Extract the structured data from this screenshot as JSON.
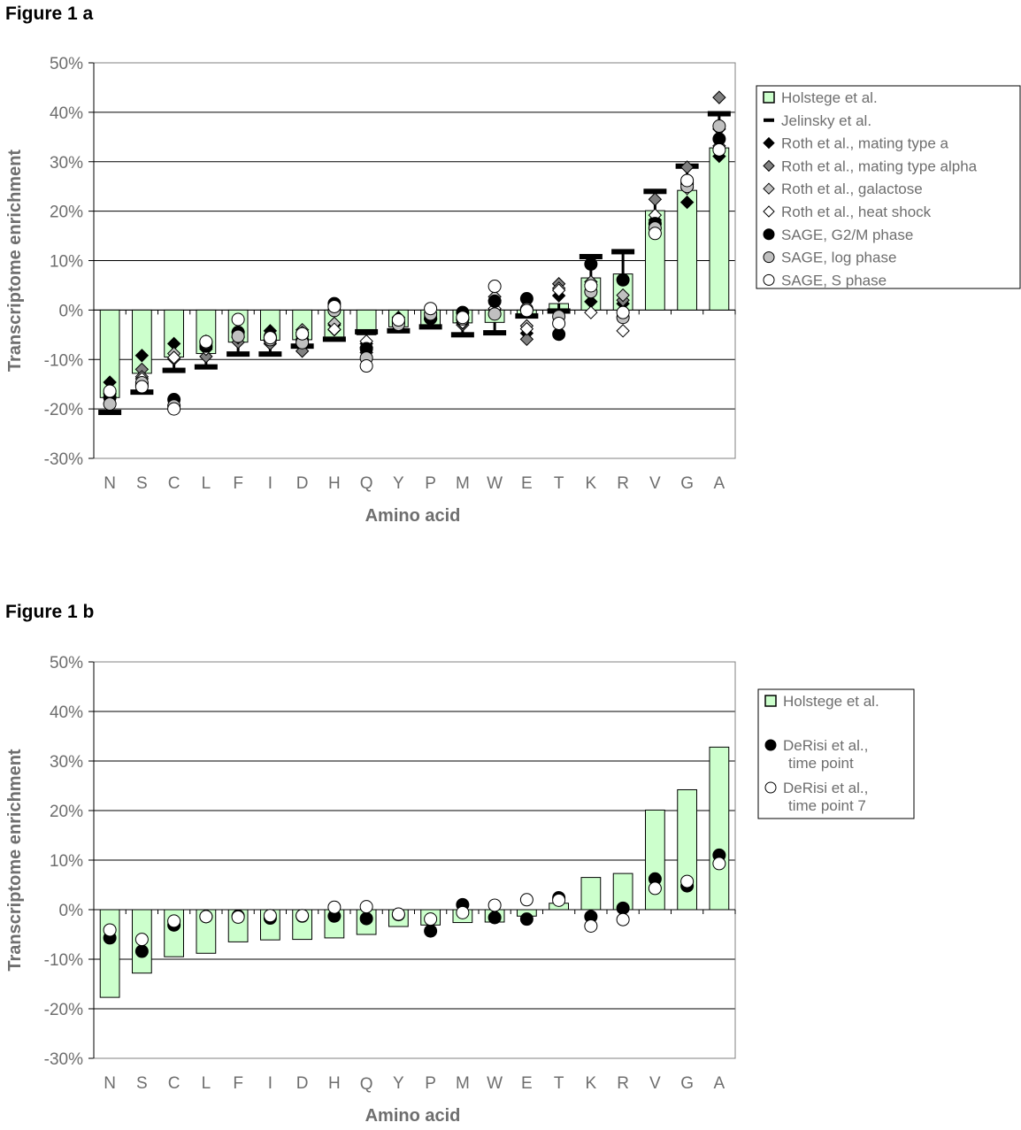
{
  "titles": {
    "a": "Figure 1 a",
    "b": "Figure 1 b"
  },
  "colors": {
    "bar_fill": "#ccffcc",
    "grid": "#000000",
    "text": "#6e6e6e",
    "gray_marker": "#808080",
    "light_marker": "#c0c0c0"
  },
  "chart_data": [
    {
      "type": "bar",
      "title": "Figure 1 a",
      "xlabel": "Amino acid",
      "ylabel": "Transcriptome enrichment",
      "ylim": [
        -30,
        50
      ],
      "yticks": [
        "50%",
        "40%",
        "30%",
        "20%",
        "10%",
        "0%",
        "-10%",
        "-20%",
        "-30%"
      ],
      "categories": [
        "N",
        "S",
        "C",
        "L",
        "F",
        "I",
        "D",
        "H",
        "Q",
        "Y",
        "P",
        "M",
        "W",
        "E",
        "T",
        "K",
        "R",
        "V",
        "G",
        "A"
      ],
      "grid": true,
      "legend_position": "right",
      "series": [
        {
          "name": "Holstege et al.",
          "kind": "bar",
          "marker": "square",
          "fill": "#ccffcc",
          "values": [
            -17.7,
            -12.8,
            -9.5,
            -8.8,
            -6.5,
            -6.1,
            -6.0,
            -5.7,
            -5.0,
            -3.4,
            -3.1,
            -2.6,
            -2.5,
            -1.3,
            1.3,
            6.5,
            7.3,
            20.1,
            24.2,
            32.8
          ]
        },
        {
          "name": "Jelinsky et al.",
          "kind": "dash",
          "marker": "dash",
          "fill": "#000000",
          "values": [
            -20.7,
            -16.6,
            -12.2,
            -11.5,
            -8.9,
            -8.9,
            -7.3,
            -5.9,
            -4.4,
            -4.2,
            -3.4,
            -5.0,
            -4.6,
            -1.2,
            -0.2,
            10.8,
            11.8,
            24.0,
            29.1,
            39.7
          ]
        },
        {
          "name": "Roth et al., mating type a",
          "kind": "marker",
          "marker": "diamond",
          "fill": "#000000",
          "values": [
            -14.6,
            -9.2,
            -6.8,
            -6.3,
            -4.4,
            -4.2,
            -5.3,
            -3.0,
            -6.8,
            -1.5,
            -1.2,
            -2.0,
            1.9,
            -4.7,
            2.9,
            1.7,
            1.3,
            17.4,
            21.8,
            31.1
          ]
        },
        {
          "name": "Roth et al., mating type alpha",
          "kind": "marker",
          "marker": "diamond",
          "fill": "#808080",
          "values": [
            -18.9,
            -12.0,
            -9.9,
            -9.4,
            -6.5,
            -6.8,
            -8.3,
            -4.0,
            -8.6,
            -2.4,
            -2.0,
            -3.0,
            0.0,
            -5.9,
            5.3,
            5.2,
            2.0,
            22.4,
            28.9,
            43.0
          ]
        },
        {
          "name": "Roth et al., galactose",
          "kind": "marker",
          "marker": "diamond",
          "fill": "#c0c0c0",
          "values": [
            -16.8,
            -13.5,
            -8.8,
            -7.6,
            -5.6,
            -5.9,
            -4.0,
            -2.7,
            -7.5,
            -1.8,
            -1.6,
            -2.6,
            2.7,
            -3.2,
            4.4,
            5.7,
            3.0,
            18.2,
            24.6,
            36.6
          ]
        },
        {
          "name": "Roth et al., heat shock",
          "kind": "marker",
          "marker": "diamond",
          "fill": "#ffffff",
          "values": [
            -17.0,
            -13.9,
            -9.6,
            -7.9,
            -5.4,
            -5.6,
            -4.5,
            -3.9,
            -6.3,
            -2.2,
            -1.8,
            -2.5,
            0.3,
            -3.8,
            4.0,
            -0.5,
            -4.2,
            19.2,
            25.4,
            33.2
          ]
        },
        {
          "name": "SAGE, G2/M phase",
          "kind": "marker",
          "marker": "circle",
          "fill": "#000000",
          "values": [
            -17.7,
            -15.2,
            -18.1,
            -7.3,
            -4.5,
            -5.4,
            -6.1,
            1.3,
            -7.8,
            -2.5,
            -1.7,
            -0.5,
            1.8,
            2.3,
            -4.9,
            9.3,
            6.1,
            17.5,
            25.7,
            34.6
          ]
        },
        {
          "name": "SAGE, log phase",
          "kind": "marker",
          "marker": "circle",
          "fill": "#c0c0c0",
          "values": [
            -19.0,
            -14.7,
            -19.4,
            -6.6,
            -5.3,
            -6.0,
            -6.6,
            -0.1,
            -9.7,
            -2.9,
            -0.8,
            -1.8,
            -0.8,
            0.2,
            -1.3,
            3.7,
            -1.5,
            16.6,
            25.0,
            37.2
          ]
        },
        {
          "name": "SAGE, S phase",
          "kind": "marker",
          "marker": "circle",
          "fill": "#ffffff",
          "values": [
            -16.4,
            -15.5,
            -20.0,
            -6.4,
            -1.9,
            -5.6,
            -4.8,
            0.7,
            -11.3,
            -2.0,
            0.3,
            -1.5,
            4.8,
            -0.1,
            -2.7,
            4.9,
            -0.5,
            15.5,
            26.2,
            32.4
          ]
        }
      ]
    },
    {
      "type": "bar",
      "title": "Figure 1 b",
      "xlabel": "Amino acid",
      "ylabel": "Transcriptome enrichment",
      "ylim": [
        -30,
        50
      ],
      "yticks": [
        "50%",
        "40%",
        "30%",
        "20%",
        "10%",
        "0%",
        "-10%",
        "-20%",
        "-30%"
      ],
      "categories": [
        "N",
        "S",
        "C",
        "L",
        "F",
        "I",
        "D",
        "H",
        "Q",
        "Y",
        "P",
        "M",
        "W",
        "E",
        "T",
        "K",
        "R",
        "V",
        "G",
        "A"
      ],
      "grid": true,
      "legend_position": "right",
      "series": [
        {
          "name": "Holstege et al.",
          "kind": "bar",
          "marker": "square",
          "fill": "#ccffcc",
          "values": [
            -17.7,
            -12.8,
            -9.5,
            -8.8,
            -6.5,
            -6.1,
            -6.0,
            -5.7,
            -5.0,
            -3.4,
            -3.1,
            -2.6,
            -2.5,
            -1.3,
            1.3,
            6.5,
            7.3,
            20.1,
            24.2,
            32.8
          ]
        },
        {
          "name": "DeRisi et al., time point",
          "kind": "marker",
          "marker": "circle",
          "fill": "#000000",
          "values": [
            -5.7,
            -8.4,
            -3.1,
            -1.4,
            -1.3,
            -1.7,
            -1.3,
            -1.3,
            -1.8,
            -1.0,
            -4.3,
            1.0,
            -1.6,
            -1.9,
            2.4,
            -1.4,
            0.3,
            6.2,
            4.8,
            11.0
          ]
        },
        {
          "name": "DeRisi et al., time point 7",
          "kind": "marker",
          "marker": "circle",
          "fill": "#ffffff",
          "values": [
            -4.1,
            -6.0,
            -2.3,
            -1.4,
            -1.5,
            -1.2,
            -1.2,
            0.5,
            0.6,
            -0.9,
            -1.9,
            -0.6,
            0.9,
            2.0,
            1.9,
            -3.3,
            -2.0,
            4.3,
            5.7,
            9.3
          ]
        }
      ],
      "legend_text": [
        [
          "Holstege et al."
        ],
        [
          "DeRisi et al.,",
          "time point"
        ],
        [
          "DeRisi et al.,",
          "time point 7"
        ]
      ]
    }
  ]
}
